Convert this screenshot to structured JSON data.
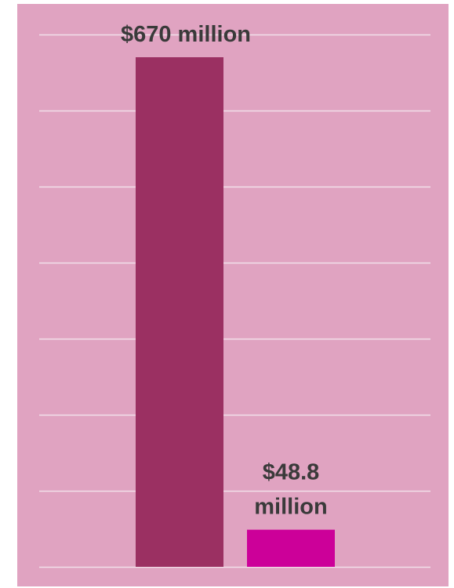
{
  "chart_data": {
    "type": "bar",
    "categories": [
      "",
      ""
    ],
    "values": [
      670,
      48.8
    ],
    "value_labels": [
      "$670 million",
      "$48.8 million"
    ],
    "ylim": [
      0,
      700
    ],
    "grid": true,
    "colors": {
      "background": "#e0a3c1",
      "gridline": "#f2e0ea",
      "bars": [
        "#9b3062",
        "#cc0099"
      ],
      "label_text": "#3a3a3a"
    }
  }
}
